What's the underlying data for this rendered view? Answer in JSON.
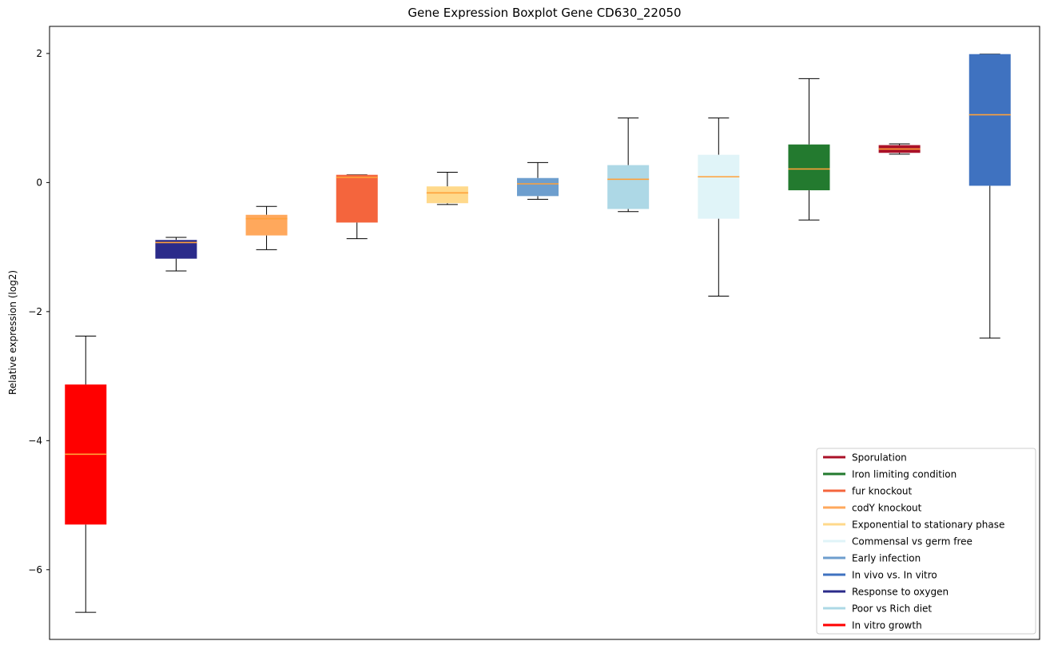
{
  "chart_data": {
    "type": "boxplot",
    "title": "Gene Expression Boxplot Gene CD630_22050",
    "ylabel": "Relative expression (log2)",
    "xlabel": "",
    "yticks": [
      2,
      0,
      -2,
      -4,
      -6
    ],
    "ylim": [
      -7.08,
      2.42
    ],
    "xlim": [
      0.6,
      11.55
    ],
    "grid": false,
    "median_color": "#ffa13a",
    "whisker_color": "#000000",
    "axis_color": "#000000",
    "legend_position": "lower right",
    "boxes": [
      {
        "label": "In vitro growth",
        "color": "#ff0000",
        "position": 1,
        "whislo": -6.66,
        "q1": -5.3,
        "med": -4.21,
        "q3": -3.13,
        "whishi": -2.38
      },
      {
        "label": "Response to oxygen",
        "color": "#2b2b8a",
        "position": 2,
        "whislo": -1.37,
        "q1": -1.18,
        "med": -0.93,
        "q3": -0.89,
        "whishi": -0.85
      },
      {
        "label": "codY knockout",
        "color": "#ffa85c",
        "position": 3,
        "whislo": -1.04,
        "q1": -0.82,
        "med": -0.56,
        "q3": -0.5,
        "whishi": -0.37
      },
      {
        "label": "fur knockout",
        "color": "#f4653d",
        "position": 4,
        "whislo": -0.87,
        "q1": -0.62,
        "med": 0.08,
        "q3": 0.12,
        "whishi": 0.12
      },
      {
        "label": "Exponential to stationary phase",
        "color": "#ffd98b",
        "position": 5,
        "whislo": -0.34,
        "q1": -0.32,
        "med": -0.16,
        "q3": -0.06,
        "whishi": 0.16
      },
      {
        "label": "Early infection",
        "color": "#6d9ece",
        "position": 6,
        "whislo": -0.26,
        "q1": -0.21,
        "med": -0.02,
        "q3": 0.07,
        "whishi": 0.31
      },
      {
        "label": "Poor vs Rich diet",
        "color": "#add8e6",
        "position": 7,
        "whislo": -0.45,
        "q1": -0.41,
        "med": 0.05,
        "q3": 0.27,
        "whishi": 1.0
      },
      {
        "label": "Commensal vs germ free",
        "color": "#e0f4f8",
        "position": 8,
        "whislo": -1.76,
        "q1": -0.56,
        "med": 0.09,
        "q3": 0.43,
        "whishi": 1.0
      },
      {
        "label": "Iron limiting condition",
        "color": "#237a2f",
        "position": 9,
        "whislo": -0.58,
        "q1": -0.12,
        "med": 0.21,
        "q3": 0.59,
        "whishi": 1.61
      },
      {
        "label": "Sporulation",
        "color": "#aa1128",
        "position": 10,
        "whislo": 0.44,
        "q1": 0.46,
        "med": 0.52,
        "q3": 0.58,
        "whishi": 0.6
      },
      {
        "label": "In vivo vs. In vitro",
        "color": "#3f72c0",
        "position": 11,
        "whislo": -2.41,
        "q1": -0.05,
        "med": 1.05,
        "q3": 1.99,
        "whishi": 1.99
      }
    ],
    "legend": [
      {
        "label": "Sporulation",
        "color": "#aa1128"
      },
      {
        "label": "Iron limiting condition",
        "color": "#237a2f"
      },
      {
        "label": "fur knockout",
        "color": "#f4653d"
      },
      {
        "label": "codY knockout",
        "color": "#ffa85c"
      },
      {
        "label": "Exponential to stationary phase",
        "color": "#ffd98b"
      },
      {
        "label": "Commensal vs germ free",
        "color": "#e0f4f8"
      },
      {
        "label": "Early infection",
        "color": "#6d9ece"
      },
      {
        "label": "In vivo vs. In vitro",
        "color": "#3f72c0"
      },
      {
        "label": "Response to oxygen",
        "color": "#2b2b8a"
      },
      {
        "label": "Poor vs Rich diet",
        "color": "#add8e6"
      },
      {
        "label": "In vitro growth",
        "color": "#ff0000"
      }
    ]
  }
}
